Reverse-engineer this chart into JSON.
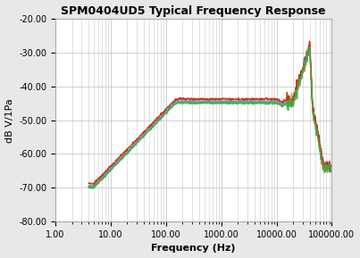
{
  "title": "SPM0404UD5 Typical Frequency Response",
  "xlabel": "Frequency (Hz)",
  "ylabel": "dB V/1Pa",
  "xlim": [
    1.0,
    100000.0
  ],
  "ylim": [
    -80.0,
    -20.0
  ],
  "yticks": [
    -80.0,
    -70.0,
    -60.0,
    -50.0,
    -40.0,
    -30.0,
    -20.0
  ],
  "background_color": "#e8e8e8",
  "plot_bg_color": "#ffffff",
  "grid_color": "#c8c8c8",
  "line_colors": [
    "#7777bb",
    "#ff8800",
    "#44aadd",
    "#cc2200",
    "#44aa44"
  ],
  "line_width": 1.0,
  "title_fontsize": 9,
  "label_fontsize": 8,
  "tick_fontsize": 7,
  "freq_start": 4.0,
  "freq_end": 100000.0,
  "n_points": 800,
  "flat_level": -44.5,
  "low_level": -69.5,
  "peak_level": -28.5,
  "peak_freq": 40000,
  "post_peak_level": -50.0,
  "end_level": -64.0
}
